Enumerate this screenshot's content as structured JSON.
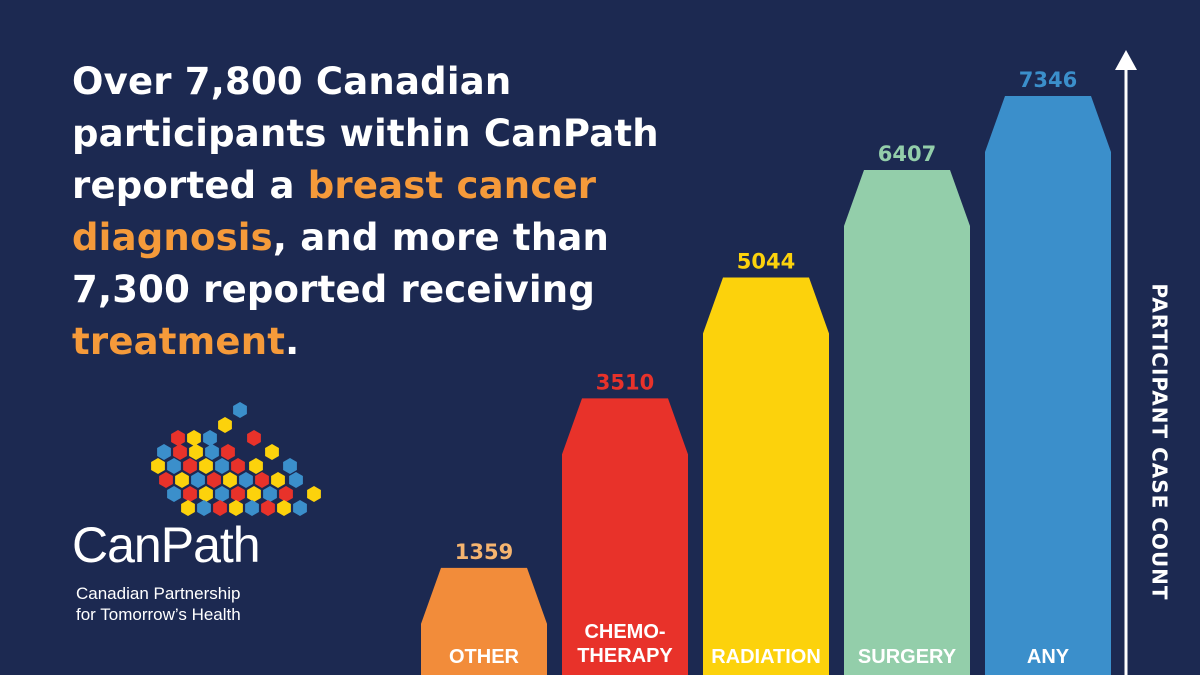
{
  "headline": {
    "part1": "Over 7,800 Canadian participants within CanPath reported a ",
    "highlight1": "breast cancer diagnosis",
    "part2": ", and more than 7,300 reported receiving ",
    "highlight2": "treatment",
    "part3": "."
  },
  "brand": {
    "name": "CanPath",
    "tagline_line1": "Canadian Partnership",
    "tagline_line2": "for Tomorrow’s Health"
  },
  "chart_data": {
    "type": "bar",
    "categories": [
      "OTHER",
      "CHEMO-THERAPY",
      "RADIATION",
      "SURGERY",
      "ANY"
    ],
    "category_lines": [
      [
        "OTHER"
      ],
      [
        "CHEMO-",
        "THERAPY"
      ],
      [
        "RADIATION"
      ],
      [
        "SURGERY"
      ],
      [
        "ANY"
      ]
    ],
    "values": [
      1359,
      3510,
      5044,
      6407,
      7346
    ],
    "colors": [
      "#f28c3a",
      "#e8322a",
      "#fcd20c",
      "#93ceaa",
      "#3b8fcb"
    ],
    "value_label_colors": [
      "#f5b46f",
      "#e8322a",
      "#fcd20c",
      "#93ceaa",
      "#3b8fcb"
    ],
    "ylabel": "PARTICIPANT CASE COUNT",
    "ylim": [
      0,
      7346
    ],
    "grid": false,
    "legend": "none"
  },
  "colors": {
    "background": "#1c2951",
    "highlight": "#f59a3a",
    "text": "#ffffff"
  }
}
